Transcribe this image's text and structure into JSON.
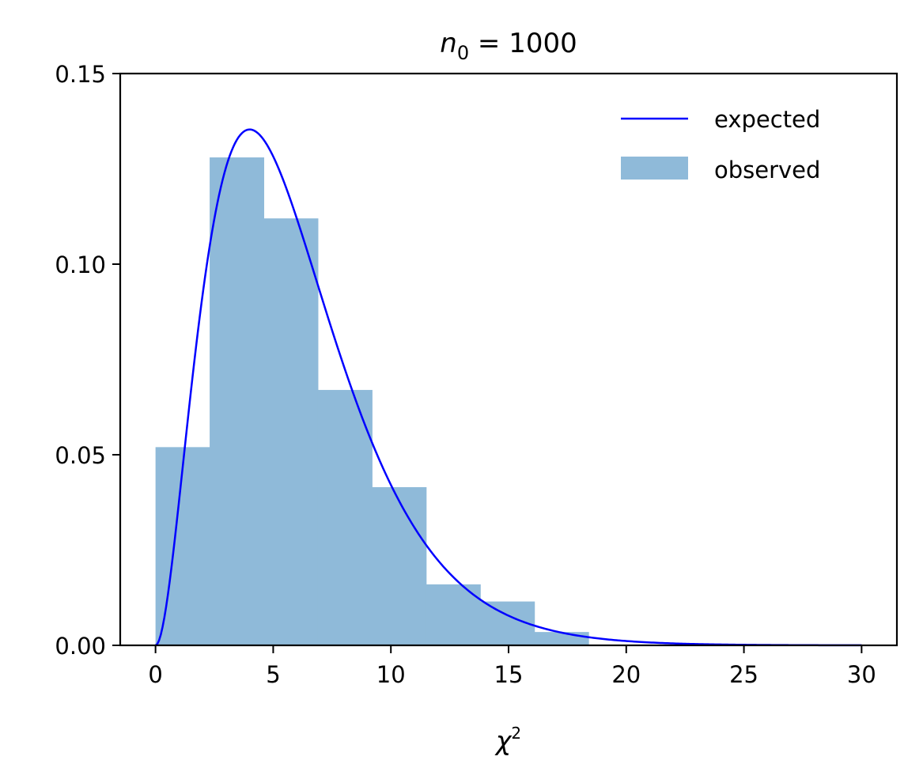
{
  "chart_data": {
    "type": "bar",
    "title": "n0 = 1000",
    "title_main": "n",
    "title_subscript": "0",
    "title_rest": " = 1000",
    "xlabel": "χ2",
    "xlabel_main": "χ",
    "xlabel_sup": "2",
    "ylabel": "",
    "xlim": [
      -1.5,
      31.5
    ],
    "ylim": [
      0,
      0.15
    ],
    "xticks": [
      0,
      5,
      10,
      15,
      20,
      25,
      30
    ],
    "xtick_labels": [
      "0",
      "5",
      "10",
      "15",
      "20",
      "25",
      "30"
    ],
    "yticks": [
      0,
      0.05,
      0.1,
      0.15
    ],
    "ytick_labels": [
      "0.00",
      "0.05",
      "0.10",
      "0.15"
    ],
    "grid": false,
    "legend_position": "top-right",
    "series": [
      {
        "name": "observed",
        "kind": "histogram",
        "color": "#8fbad9",
        "bin_edges": [
          0,
          2.3,
          4.6,
          6.9,
          9.2,
          11.5,
          13.8,
          16.1,
          18.4
        ],
        "values": [
          0.052,
          0.128,
          0.112,
          0.067,
          0.0415,
          0.016,
          0.0115,
          0.0035
        ]
      },
      {
        "name": "expected",
        "kind": "line",
        "color": "#0000ff",
        "distribution": "chi-squared",
        "dof": 6,
        "x_range": [
          0,
          30
        ]
      }
    ]
  }
}
